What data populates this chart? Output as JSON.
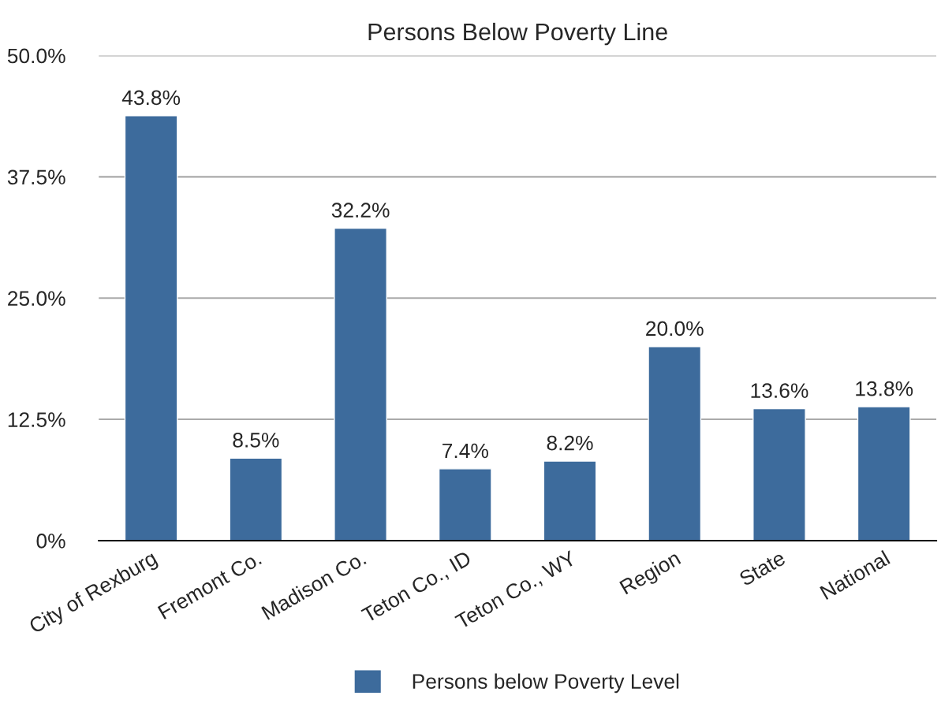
{
  "chart_data": {
    "type": "bar",
    "title": "Persons Below Poverty Line",
    "categories": [
      "City of Rexburg",
      "Fremont Co.",
      "Madison Co.",
      "Teton Co., ID",
      "Teton Co., WY",
      "Region",
      "State",
      "National"
    ],
    "series": [
      {
        "name": "Persons below Poverty Level",
        "color": "#3d6b9c",
        "values": [
          43.8,
          8.5,
          32.2,
          7.4,
          8.2,
          20.0,
          13.6,
          13.8
        ],
        "value_labels": [
          "43.8%",
          "8.5%",
          "32.2%",
          "7.4%",
          "8.2%",
          "20.0%",
          "13.6%",
          "13.8%"
        ]
      }
    ],
    "ylim": [
      0,
      50
    ],
    "yticks": [
      {
        "value": 0,
        "label": "0%"
      },
      {
        "value": 12.5,
        "label": "12.5%"
      },
      {
        "value": 25,
        "label": "25.0%"
      },
      {
        "value": 37.5,
        "label": "37.5%"
      },
      {
        "value": 50,
        "label": "50.0%"
      }
    ],
    "grid": "y",
    "legend": "bottom"
  }
}
